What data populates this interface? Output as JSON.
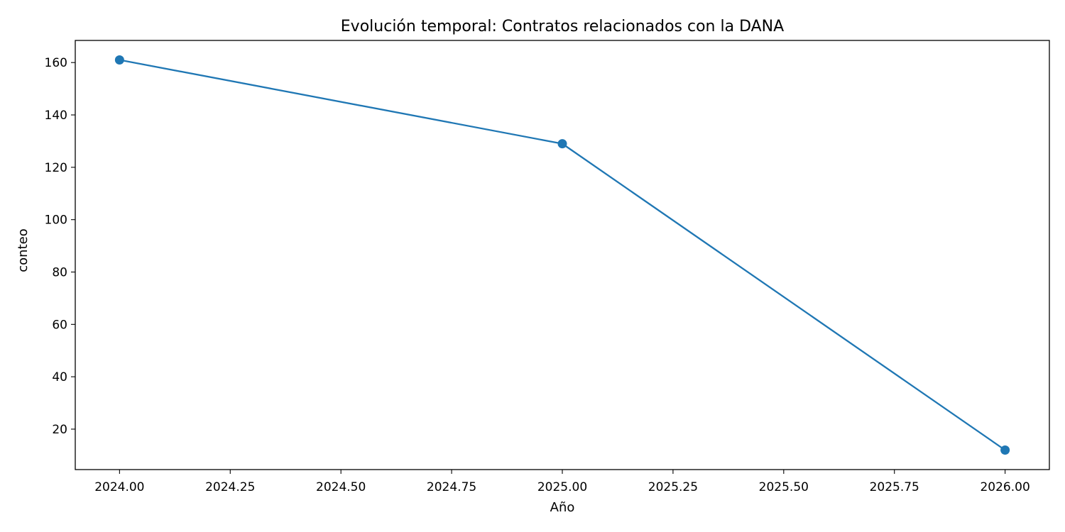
{
  "chart_data": {
    "type": "line",
    "title": "Evolución temporal: Contratos relacionados con la DANA",
    "xlabel": "Año",
    "ylabel": "conteo",
    "x": [
      2024,
      2025,
      2026
    ],
    "series": [
      {
        "values": [
          161,
          129,
          12
        ]
      }
    ],
    "xlim": [
      2023.9,
      2026.1
    ],
    "ylim": [
      4.55,
      168.45
    ],
    "xticks": [
      2024.0,
      2024.25,
      2024.5,
      2024.75,
      2025.0,
      2025.25,
      2025.5,
      2025.75,
      2026.0
    ],
    "xtick_labels": [
      "2024.00",
      "2024.25",
      "2024.50",
      "2024.75",
      "2025.00",
      "2025.25",
      "2025.50",
      "2025.75",
      "2026.00"
    ],
    "yticks": [
      20,
      40,
      60,
      80,
      100,
      120,
      140,
      160
    ],
    "ytick_labels": [
      "20",
      "40",
      "60",
      "80",
      "100",
      "120",
      "140",
      "160"
    ],
    "grid": false,
    "line_color": "#1f77b4",
    "marker": "circle"
  }
}
